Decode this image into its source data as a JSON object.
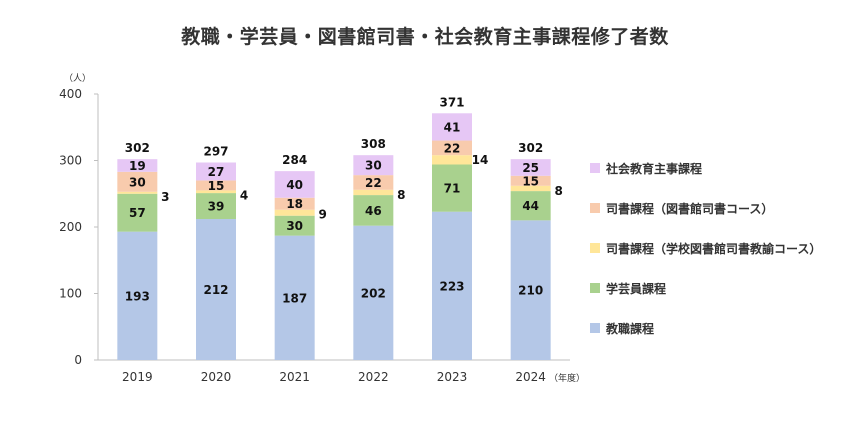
{
  "chart_data": {
    "type": "bar",
    "stacked": true,
    "title": "教職・学芸員・図書館司書・社会教育主事課程修了者数",
    "y_unit_label": "（人）",
    "x_unit_label": "（年度）",
    "ylim": [
      0,
      400
    ],
    "yticks": [
      0,
      100,
      200,
      300,
      400
    ],
    "categories": [
      "2019",
      "2020",
      "2021",
      "2022",
      "2023",
      "2024"
    ],
    "series": [
      {
        "name": "教職課程",
        "color": "#b4c7e7",
        "values": [
          193,
          212,
          187,
          202,
          223,
          210
        ]
      },
      {
        "name": "学芸員課程",
        "color": "#a9d18e",
        "values": [
          57,
          39,
          30,
          46,
          71,
          44
        ]
      },
      {
        "name": "司書課程（学校図書館司書教諭コース）",
        "color": "#ffe699",
        "values": [
          3,
          4,
          9,
          8,
          14,
          8
        ]
      },
      {
        "name": "司書課程（図書館司書コース）",
        "color": "#f8cbad",
        "values": [
          30,
          15,
          18,
          22,
          22,
          15
        ]
      },
      {
        "name": "社会教育主事課程",
        "color": "#e6c7f5",
        "values": [
          19,
          27,
          40,
          30,
          41,
          25
        ]
      }
    ],
    "totals": [
      302,
      297,
      284,
      308,
      371,
      302
    ],
    "legend_order": [
      "社会教育主事課程",
      "司書課程（図書館司書コース）",
      "司書課程（学校図書館司書教諭コース）",
      "学芸員課程",
      "教職課程"
    ],
    "legend_position": "right",
    "grid": false
  }
}
